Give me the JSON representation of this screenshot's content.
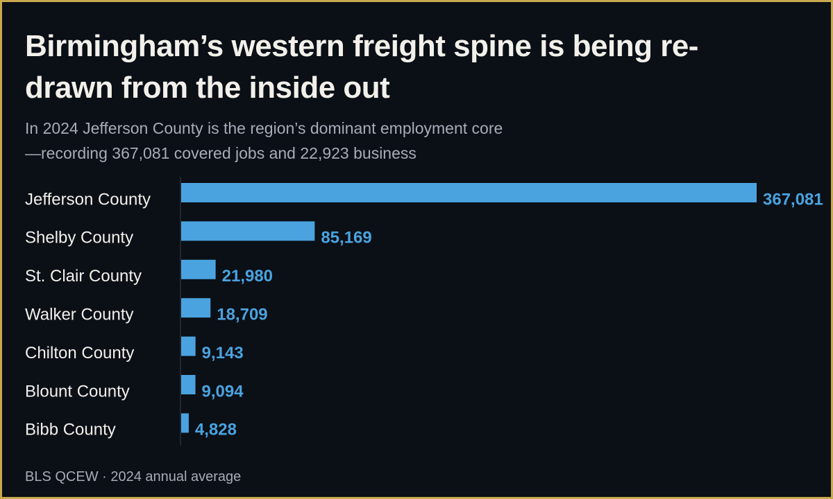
{
  "chart_data": {
    "type": "bar",
    "title": "Birmingham’s western freight spine is being re-drawn from the inside out",
    "subtitle": "In 2024 Jefferson County is the region’s dominant employment core—recording 367,081 covered jobs and 22,923 business",
    "source": "BLS QCEW · 2024 annual average",
    "categories": [
      "Jefferson County",
      "Shelby County",
      "St. Clair County",
      "Walker County",
      "Chilton County",
      "Blount County",
      "Bibb County"
    ],
    "values": [
      367081,
      85169,
      21980,
      18709,
      9143,
      9094,
      4828
    ],
    "value_labels": [
      "367,081",
      "85,169",
      "21,980",
      "18,709",
      "9,143",
      "9,094",
      "4,828"
    ],
    "color": "#4aa3df"
  }
}
